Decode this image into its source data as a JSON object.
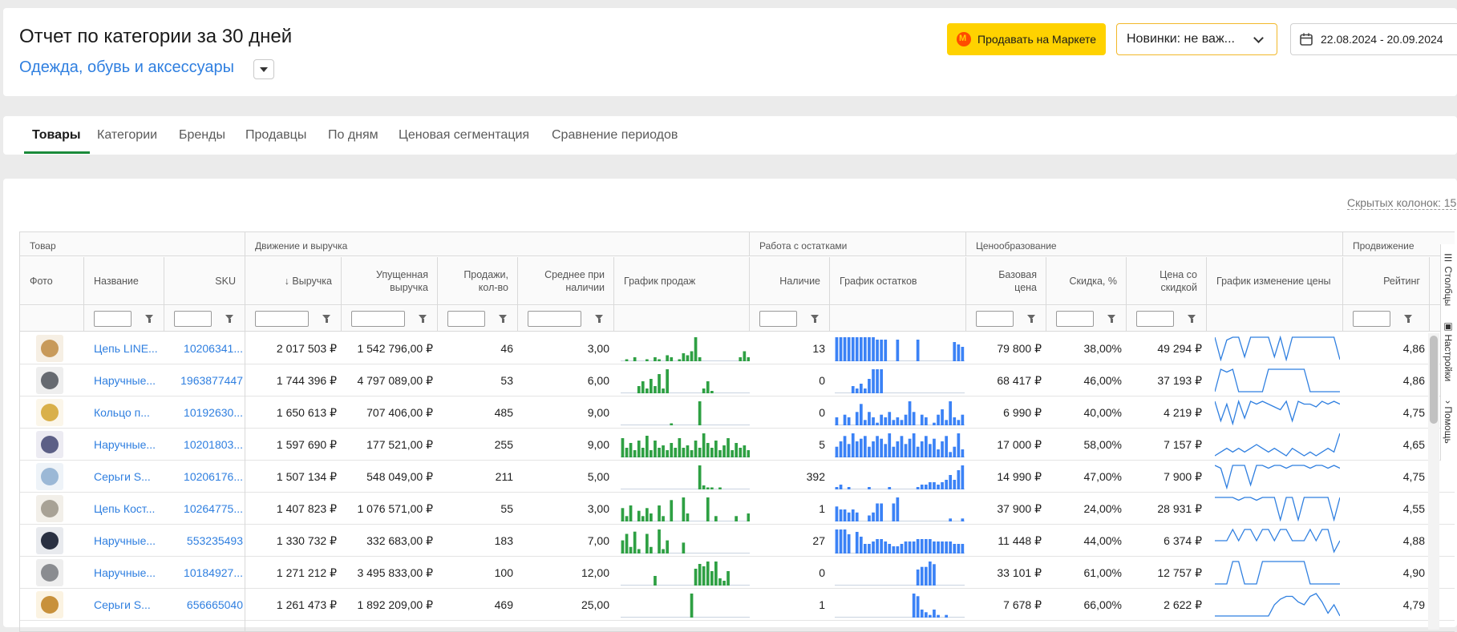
{
  "header": {
    "title": "Отчет по категории за 30 дней",
    "category": "Одежда, обувь и аксессуары",
    "sell_button": "Продавать на Маркете",
    "novelty_select": "Новинки: не важ...",
    "date_range": "22.08.2024 - 20.09.2024"
  },
  "tabs": [
    "Товары",
    "Категории",
    "Бренды",
    "Продавцы",
    "По дням",
    "Ценовая сегментация",
    "Сравнение периодов"
  ],
  "hidden_columns": "Скрытых колонок: 15",
  "groups": [
    "Товар",
    "Движение и выручка",
    "Работа с остатками",
    "Ценообразование",
    "Продвижение"
  ],
  "columns": {
    "photo": "Фото",
    "name": "Название",
    "sku": "SKU",
    "revenue": "↓ Выручка",
    "lost_revenue": "Упущенная выручка",
    "sales": "Продажи, кол-во",
    "avg_in_stock": "Среднее при наличии",
    "sales_chart": "График продаж",
    "stock": "Наличие",
    "stock_chart": "График остатков",
    "base_price": "Базовая цена",
    "discount": "Скидка, %",
    "discount_price": "Цена со скидкой",
    "price_chart": "График изменение цены",
    "rating": "Рейтинг"
  },
  "side_tabs": [
    "Столбцы",
    "Настройки",
    "Помощь"
  ],
  "colors": {
    "accent_link": "#2f7fe0",
    "sales_bar": "#2ea043",
    "stock_bar": "#3b82f6",
    "price_line": "#2f7fe0",
    "sell_button": "#ffd200",
    "tab_underline": "#1a8a3a"
  },
  "rows": [
    {
      "thumb": "chain-gold",
      "name": "Цепь LINE...",
      "sku": "10206341...",
      "revenue": "2 017 503 ₽",
      "lost": "1 542 796,00 ₽",
      "sales": "46",
      "avg": "3,00",
      "stock": "13",
      "base": "79 800 ₽",
      "discount": "38,00%",
      "dprice": "49 294 ₽",
      "rating": "4,86",
      "sales_series": [
        0,
        1,
        0,
        2,
        0,
        0,
        1,
        0,
        2,
        1,
        0,
        3,
        2,
        0,
        1,
        4,
        3,
        5,
        12,
        2,
        0,
        0,
        0,
        0,
        0,
        0,
        0,
        0,
        0,
        2,
        5,
        2
      ],
      "stock_series": [
        10,
        10,
        10,
        10,
        10,
        10,
        10,
        10,
        10,
        10,
        9,
        9,
        9,
        0,
        0,
        9,
        0,
        0,
        0,
        0,
        9,
        0,
        0,
        0,
        0,
        0,
        0,
        0,
        0,
        8,
        7,
        6
      ],
      "price_series": [
        9,
        1,
        8,
        9,
        9,
        2,
        9,
        9,
        9,
        9,
        2,
        9,
        1,
        9,
        9,
        9,
        9,
        9,
        9,
        9,
        9,
        1
      ]
    },
    {
      "thumb": "watch-steel",
      "name": "Наручные...",
      "sku": "1963877447",
      "revenue": "1 744 396 ₽",
      "lost": "4 797 089,00 ₽",
      "sales": "53",
      "avg": "6,00",
      "stock": "0",
      "base": "68 417 ₽",
      "discount": "46,00%",
      "dprice": "37 193 ₽",
      "rating": "4,86",
      "sales_series": [
        0,
        0,
        0,
        0,
        3,
        5,
        2,
        6,
        3,
        8,
        2,
        10,
        0,
        0,
        0,
        0,
        0,
        0,
        0,
        0,
        2,
        5,
        1,
        0,
        0,
        0,
        0,
        0,
        0,
        0,
        0,
        0
      ],
      "stock_series": [
        0,
        0,
        0,
        0,
        3,
        2,
        4,
        2,
        6,
        10,
        10,
        10,
        0,
        0,
        0,
        0,
        0,
        0,
        0,
        0,
        0,
        0,
        0,
        0,
        0,
        0,
        0,
        0,
        0,
        0,
        0,
        0
      ],
      "price_series": [
        1,
        9,
        8,
        9,
        1,
        1,
        1,
        1,
        1,
        9,
        9,
        9,
        9,
        9,
        9,
        9,
        1,
        1,
        1,
        1,
        1,
        1
      ]
    },
    {
      "thumb": "ring-gold",
      "name": "Кольцо п...",
      "sku": "10192630...",
      "revenue": "1 650 613 ₽",
      "lost": "707 406,00 ₽",
      "sales": "485",
      "avg": "9,00",
      "stock": "0",
      "base": "6 990 ₽",
      "discount": "40,00%",
      "dprice": "4 219 ₽",
      "rating": "4,75",
      "sales_series": [
        0,
        0,
        0,
        0,
        0,
        0,
        0,
        0,
        0,
        0,
        0,
        0,
        1,
        0,
        0,
        0,
        0,
        0,
        0,
        12,
        0,
        0,
        0,
        0,
        0,
        0,
        0,
        0,
        0,
        0,
        0,
        0
      ],
      "stock_series": [
        3,
        0,
        4,
        3,
        0,
        5,
        8,
        2,
        5,
        3,
        1,
        4,
        3,
        5,
        2,
        3,
        2,
        4,
        9,
        5,
        0,
        4,
        3,
        0,
        1,
        4,
        6,
        2,
        9,
        3,
        2,
        4
      ],
      "price_series": [
        9,
        2,
        8,
        1,
        9,
        3,
        9,
        8,
        9,
        8,
        7,
        6,
        9,
        2,
        9,
        8,
        8,
        7,
        9,
        8,
        9,
        8
      ]
    },
    {
      "thumb": "watch-brown",
      "name": "Наручные...",
      "sku": "10201803...",
      "revenue": "1 597 690 ₽",
      "lost": "177 521,00 ₽",
      "sales": "255",
      "avg": "9,00",
      "stock": "5",
      "base": "17 000 ₽",
      "discount": "58,00%",
      "dprice": "7 157 ₽",
      "rating": "4,65",
      "sales_series": [
        8,
        4,
        6,
        3,
        7,
        4,
        9,
        3,
        7,
        4,
        5,
        3,
        6,
        4,
        8,
        4,
        5,
        3,
        7,
        4,
        10,
        6,
        4,
        7,
        3,
        5,
        8,
        3,
        6,
        4,
        5,
        3
      ],
      "stock_series": [
        4,
        6,
        8,
        5,
        9,
        6,
        7,
        8,
        4,
        6,
        8,
        7,
        5,
        9,
        4,
        6,
        8,
        5,
        7,
        9,
        4,
        6,
        8,
        5,
        7,
        3,
        6,
        8,
        2,
        4,
        9,
        3
      ],
      "price_series": [
        3,
        4,
        5,
        4,
        5,
        4,
        5,
        6,
        5,
        4,
        5,
        4,
        3,
        5,
        4,
        3,
        4,
        3,
        4,
        5,
        4,
        9
      ]
    },
    {
      "thumb": "earrings-card",
      "name": "Серьги S...",
      "sku": "10206176...",
      "revenue": "1 507 134 ₽",
      "lost": "548 049,00 ₽",
      "sales": "211",
      "avg": "5,00",
      "stock": "392",
      "base": "14 990 ₽",
      "discount": "47,00%",
      "dprice": "7 900 ₽",
      "rating": "4,75",
      "sales_series": [
        0,
        0,
        0,
        0,
        0,
        0,
        0,
        0,
        0,
        0,
        0,
        0,
        0,
        0,
        0,
        0,
        0,
        0,
        0,
        12,
        2,
        1,
        1,
        0,
        1,
        0,
        0,
        0,
        0,
        0,
        0,
        0
      ],
      "stock_series": [
        1,
        2,
        0,
        1,
        0,
        0,
        0,
        0,
        1,
        0,
        0,
        0,
        0,
        1,
        0,
        0,
        0,
        0,
        0,
        0,
        1,
        2,
        2,
        3,
        3,
        2,
        3,
        4,
        6,
        4,
        8,
        10
      ],
      "price_series": [
        9,
        8,
        1,
        9,
        9,
        9,
        2,
        9,
        9,
        8,
        9,
        9,
        8,
        9,
        9,
        9,
        8,
        9,
        9,
        8,
        9,
        8
      ]
    },
    {
      "thumb": "chain-silver",
      "name": "Цепь Кост...",
      "sku": "10264775...",
      "revenue": "1 407 823 ₽",
      "lost": "1 076 571,00 ₽",
      "sales": "55",
      "avg": "3,00",
      "stock": "1",
      "base": "37 900 ₽",
      "discount": "24,00%",
      "dprice": "28 931 ₽",
      "rating": "4,55",
      "sales_series": [
        5,
        2,
        6,
        0,
        4,
        2,
        5,
        3,
        0,
        6,
        2,
        0,
        8,
        0,
        0,
        9,
        3,
        0,
        0,
        0,
        0,
        9,
        0,
        2,
        0,
        0,
        0,
        0,
        2,
        0,
        0,
        3
      ],
      "stock_series": [
        5,
        4,
        4,
        3,
        4,
        3,
        0,
        0,
        2,
        3,
        6,
        6,
        0,
        0,
        6,
        8,
        0,
        0,
        0,
        0,
        0,
        0,
        0,
        0,
        0,
        0,
        0,
        0,
        1,
        0,
        0,
        1
      ],
      "price_series": [
        9,
        9,
        9,
        9,
        8,
        9,
        9,
        8,
        9,
        9,
        9,
        1,
        9,
        9,
        1,
        9,
        9,
        9,
        9,
        9,
        1,
        9
      ]
    },
    {
      "thumb": "watch-black",
      "name": "Наручные...",
      "sku": "553235493",
      "revenue": "1 330 732 ₽",
      "lost": "332 683,00 ₽",
      "sales": "183",
      "avg": "7,00",
      "stock": "27",
      "base": "11 448 ₽",
      "discount": "44,00%",
      "dprice": "6 374 ₽",
      "rating": "4,88",
      "sales_series": [
        6,
        9,
        3,
        10,
        2,
        0,
        9,
        3,
        0,
        11,
        2,
        6,
        0,
        0,
        0,
        5,
        0,
        0,
        0,
        0,
        0,
        0,
        0,
        0,
        0,
        0,
        0,
        0,
        0,
        0,
        0,
        0
      ],
      "stock_series": [
        10,
        10,
        10,
        8,
        0,
        9,
        7,
        4,
        4,
        5,
        6,
        6,
        5,
        4,
        3,
        3,
        4,
        5,
        5,
        5,
        6,
        6,
        6,
        6,
        5,
        5,
        5,
        5,
        5,
        4,
        4,
        4
      ],
      "price_series": [
        6,
        6,
        6,
        7,
        6,
        7,
        7,
        6,
        7,
        7,
        6,
        7,
        7,
        6,
        6,
        6,
        7,
        6,
        7,
        7,
        5,
        6
      ]
    },
    {
      "thumb": "watch-round",
      "name": "Наручные...",
      "sku": "10184927...",
      "revenue": "1 271 212 ₽",
      "lost": "3 495 833,00 ₽",
      "sales": "100",
      "avg": "12,00",
      "stock": "0",
      "base": "33 101 ₽",
      "discount": "61,00%",
      "dprice": "12 757 ₽",
      "rating": "4,90",
      "sales_series": [
        0,
        0,
        0,
        0,
        0,
        0,
        0,
        0,
        4,
        0,
        0,
        0,
        0,
        0,
        0,
        0,
        0,
        0,
        7,
        9,
        8,
        10,
        6,
        10,
        3,
        2,
        6,
        0,
        0,
        0,
        0,
        0
      ],
      "stock_series": [
        0,
        0,
        0,
        0,
        0,
        0,
        0,
        0,
        0,
        0,
        0,
        0,
        0,
        0,
        0,
        0,
        0,
        0,
        0,
        0,
        6,
        7,
        7,
        9,
        8,
        0,
        0,
        0,
        0,
        0,
        0,
        0
      ],
      "price_series": [
        1,
        1,
        1,
        9,
        9,
        1,
        1,
        1,
        9,
        9,
        9,
        9,
        9,
        9,
        9,
        9,
        1,
        1,
        1,
        1,
        1,
        1
      ]
    },
    {
      "thumb": "earrings-gold",
      "name": "Серьги S...",
      "sku": "656665040",
      "revenue": "1 261 473 ₽",
      "lost": "1 892 209,00 ₽",
      "sales": "469",
      "avg": "25,00",
      "stock": "1",
      "base": "7 678 ₽",
      "discount": "66,00%",
      "dprice": "2 622 ₽",
      "rating": "4,79",
      "sales_series": [
        0,
        0,
        0,
        0,
        0,
        0,
        0,
        0,
        0,
        0,
        0,
        0,
        0,
        0,
        0,
        0,
        0,
        2,
        0,
        0,
        0,
        0,
        0,
        0,
        0,
        0,
        0,
        0,
        0,
        0,
        0,
        0
      ],
      "stock_series": [
        0,
        0,
        0,
        0,
        0,
        0,
        0,
        0,
        0,
        0,
        0,
        0,
        0,
        0,
        0,
        0,
        0,
        0,
        0,
        9,
        8,
        3,
        2,
        1,
        3,
        1,
        0,
        1,
        0,
        0,
        0,
        0
      ],
      "price_series": [
        1,
        1,
        1,
        1,
        1,
        1,
        1,
        1,
        1,
        1,
        5,
        7,
        8,
        8,
        6,
        5,
        8,
        9,
        6,
        2,
        5,
        1
      ]
    }
  ]
}
